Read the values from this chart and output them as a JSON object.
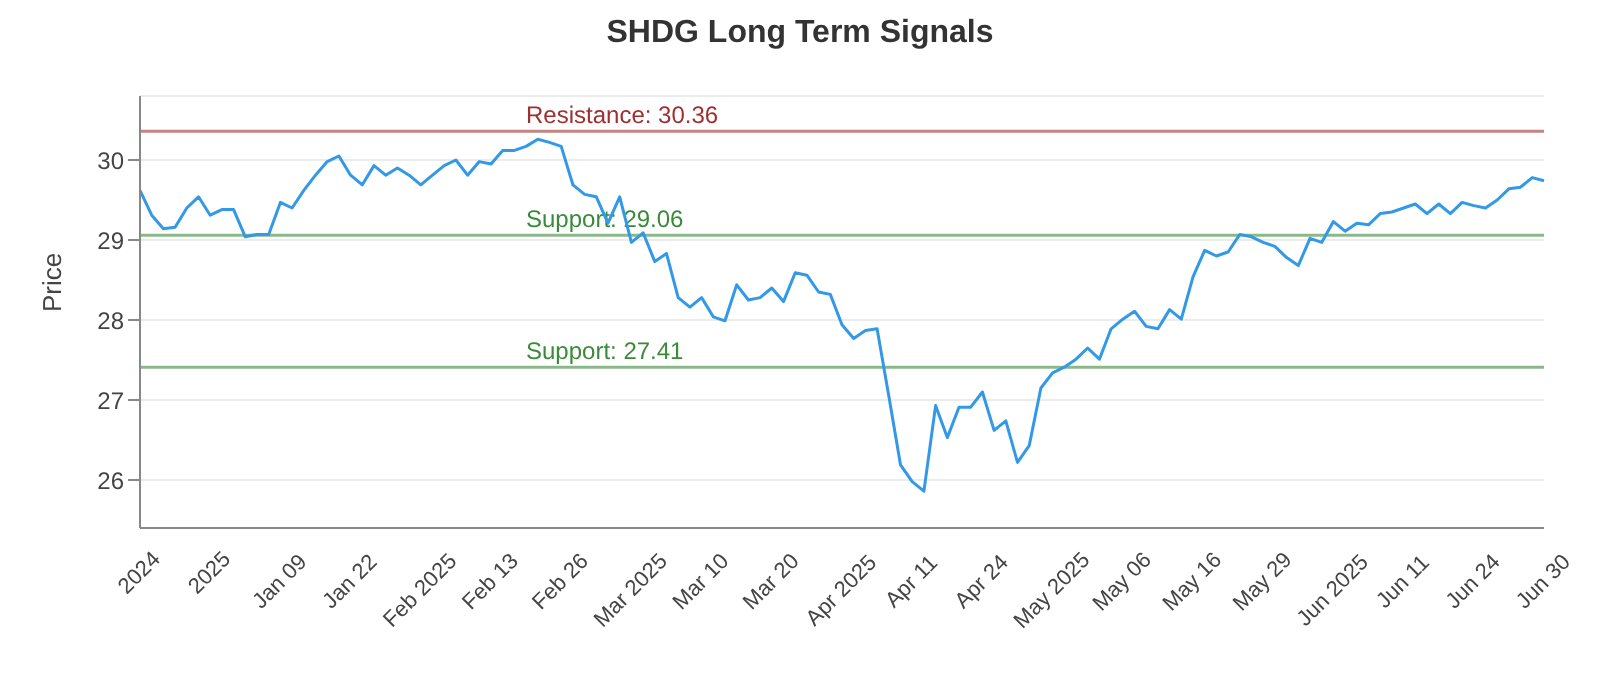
{
  "chart_data": {
    "type": "line",
    "title": "SHDG Long Term Signals",
    "ylabel": "Price",
    "categories": [
      "2024",
      null,
      null,
      null,
      null,
      null,
      "2025",
      null,
      null,
      null,
      null,
      null,
      "Jan 09",
      null,
      null,
      null,
      null,
      null,
      "Jan 22",
      null,
      null,
      null,
      null,
      null,
      "Feb 2025",
      null,
      null,
      null,
      null,
      null,
      "Feb 13",
      null,
      null,
      null,
      null,
      null,
      "Feb 26",
      null,
      null,
      null,
      null,
      null,
      "Mar 2025",
      null,
      null,
      null,
      null,
      null,
      "Mar 10",
      null,
      null,
      null,
      null,
      null,
      "Mar 20",
      null,
      null,
      null,
      null,
      null,
      "Apr 2025",
      null,
      null,
      null,
      null,
      null,
      "Apr 11",
      null,
      null,
      null,
      null,
      null,
      "Apr 24",
      null,
      null,
      null,
      null,
      null,
      "May 2025",
      null,
      null,
      null,
      null,
      null,
      "May 06",
      null,
      null,
      null,
      null,
      null,
      "May 16",
      null,
      null,
      null,
      null,
      null,
      "May 29",
      null,
      null,
      null,
      null,
      null,
      "Jun 2025",
      null,
      null,
      null,
      null,
      null,
      "Jun 11",
      null,
      null,
      null,
      null,
      null,
      "Jun 24",
      null,
      null,
      null,
      null,
      null,
      "Jun 30"
    ],
    "series": [
      {
        "color": "#3399e6",
        "values": [
          29.62,
          29.31,
          29.14,
          29.16,
          29.4,
          29.54,
          29.31,
          29.38,
          29.38,
          29.04,
          29.07,
          29.07,
          29.47,
          29.4,
          29.62,
          29.81,
          29.98,
          30.05,
          29.81,
          29.69,
          29.93,
          29.81,
          29.9,
          29.81,
          29.69,
          29.81,
          29.93,
          30.0,
          29.81,
          29.98,
          29.95,
          30.12,
          30.12,
          30.17,
          30.26,
          30.22,
          30.17,
          29.69,
          29.57,
          29.54,
          29.21,
          29.54,
          28.97,
          29.09,
          28.73,
          28.83,
          28.28,
          28.16,
          28.28,
          28.04,
          27.99,
          28.44,
          28.25,
          28.28,
          28.4,
          28.23,
          28.59,
          28.56,
          28.35,
          28.32,
          27.94,
          27.77,
          27.87,
          27.89,
          27.05,
          26.19,
          25.98,
          25.86,
          26.93,
          26.53,
          26.91,
          26.91,
          27.1,
          26.62,
          26.74,
          26.22,
          26.43,
          27.15,
          27.34,
          27.41,
          27.51,
          27.65,
          27.51,
          27.89,
          28.01,
          28.11,
          27.92,
          27.89,
          28.13,
          28.01,
          28.54,
          28.87,
          28.8,
          28.85,
          29.07,
          29.04,
          28.97,
          28.92,
          28.78,
          28.68,
          29.02,
          28.97,
          29.23,
          29.11,
          29.21,
          29.19,
          29.33,
          29.35,
          29.4,
          29.45,
          29.33,
          29.45,
          29.33,
          29.47,
          29.43,
          29.4,
          29.5,
          29.64,
          29.66,
          29.78,
          29.74
        ]
      }
    ],
    "ylim": [
      25.4,
      30.8
    ],
    "yticks": [
      26,
      27,
      28,
      29,
      30
    ],
    "grid": "y",
    "marker": "none",
    "line_style": "solid",
    "ref_lines": [
      {
        "axis": "y",
        "value": 30.36,
        "label": "Resistance: 30.36",
        "color": "#a03030"
      },
      {
        "axis": "y",
        "value": 29.06,
        "label": "Support: 29.06",
        "color": "#3a8a3a"
      },
      {
        "axis": "y",
        "value": 27.41,
        "label": "Support: 27.41",
        "color": "#3a8a3a"
      }
    ]
  }
}
